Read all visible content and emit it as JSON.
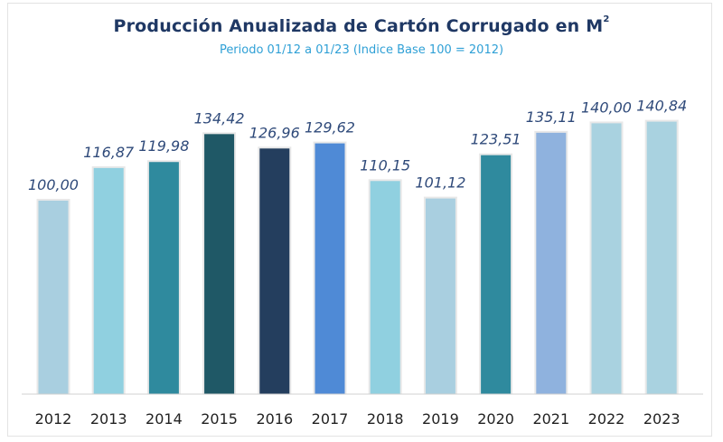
{
  "title": "Producción Anualizada de Cartón Corrugado en M",
  "title_superscript": "2",
  "subtitle": "Periodo  01/12 a 01/23 (Indice Base 100 = 2012)",
  "chart_data": {
    "type": "bar",
    "title": "Producción Anualizada de Cartón Corrugado en M²",
    "subtitle": "Periodo  01/12 a 01/23 (Indice Base 100 = 2012)",
    "categories": [
      "2012",
      "2013",
      "2014",
      "2015",
      "2016",
      "2017",
      "2018",
      "2019",
      "2020",
      "2021",
      "2022",
      "2023"
    ],
    "values": [
      100.0,
      116.87,
      119.98,
      134.42,
      126.96,
      129.62,
      110.15,
      101.12,
      123.51,
      135.11,
      140.0,
      140.84
    ],
    "value_labels": [
      "100,00",
      "116,87",
      "119,98",
      "134,42",
      "126,96",
      "129,62",
      "110,15",
      "101,12",
      "123,51",
      "135,11",
      "140,00",
      "140,84"
    ],
    "colors": [
      "#a9cfe0",
      "#90d0e0",
      "#2f8a9e",
      "#1f5866",
      "#243e5e",
      "#4f8ad6",
      "#90d0e0",
      "#a9cfe0",
      "#2f8a9e",
      "#8fb2de",
      "#a9d2e0",
      "#a9d2e0"
    ],
    "xlabel": "",
    "ylabel": "",
    "ylim": [
      0,
      150
    ],
    "grid": false,
    "legend": "none"
  }
}
